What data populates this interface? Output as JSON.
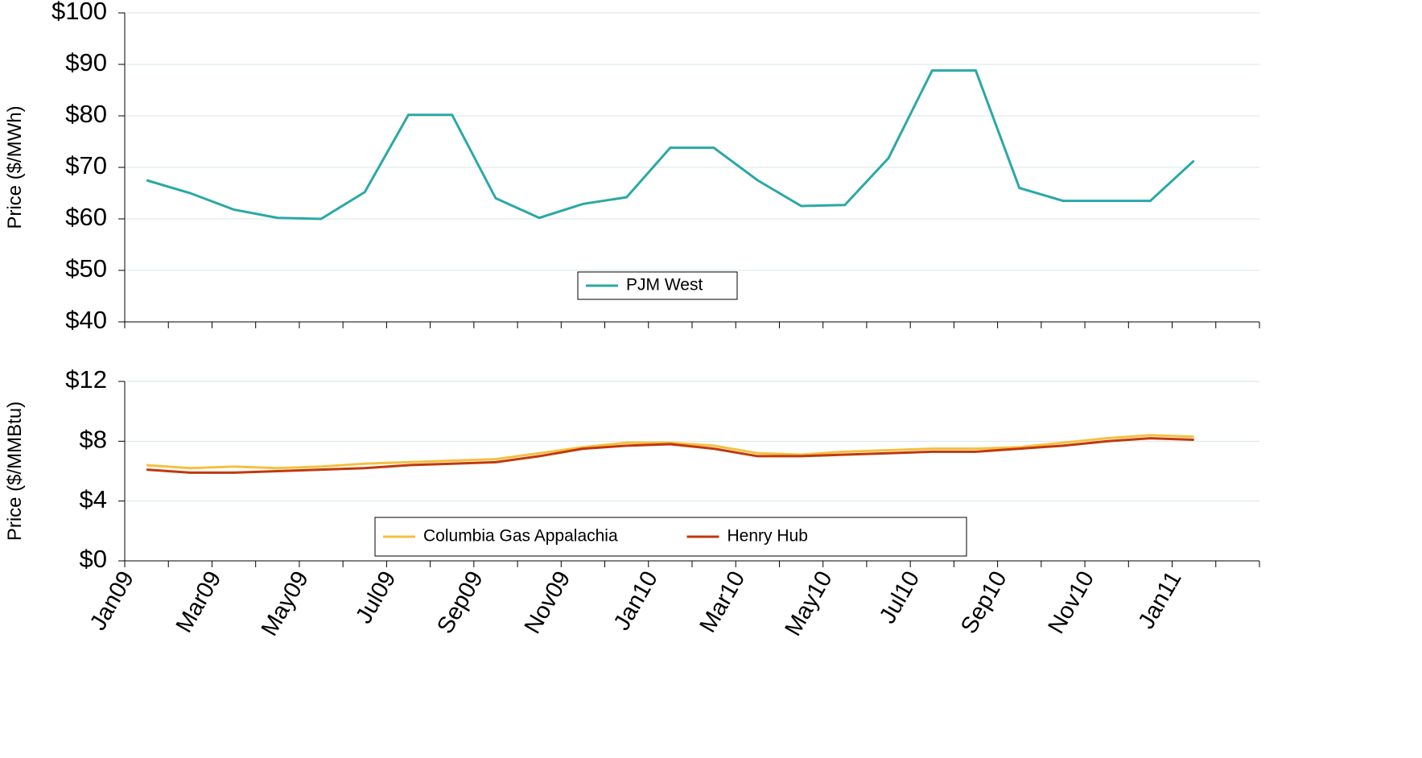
{
  "chart_data": [
    {
      "type": "line",
      "y_label": "Price ($/MWh)",
      "ylim": [
        40,
        100
      ],
      "yticks": [
        {
          "value": 40,
          "label": "$40"
        },
        {
          "value": 50,
          "label": "$50"
        },
        {
          "value": 60,
          "label": "$60"
        },
        {
          "value": 70,
          "label": "$70"
        },
        {
          "value": 80,
          "label": "$80"
        },
        {
          "value": 90,
          "label": "$90"
        },
        {
          "value": 100,
          "label": "$100"
        }
      ],
      "grid": true,
      "series": [
        {
          "name": "PJM West",
          "color": "#2aa8a6",
          "values": [
            67.5,
            65,
            61.8,
            60.2,
            60,
            65.2,
            80.2,
            80.2,
            64,
            60.2,
            62.9,
            64.2,
            73.8,
            73.8,
            67.5,
            62.5,
            62.7,
            71.8,
            88.8,
            88.8,
            66,
            63.5,
            63.5,
            63.5,
            71.3
          ]
        }
      ]
    },
    {
      "type": "line",
      "y_label": "Price ($/MMBtu)",
      "categories": [
        "Jan09",
        null,
        "Mar09",
        null,
        "May09",
        null,
        "Jul09",
        null,
        "Sep09",
        null,
        "Nov09",
        null,
        "Jan10",
        null,
        "Mar10",
        null,
        "May10",
        null,
        "Jul10",
        null,
        "Sep10",
        null,
        "Nov10",
        null,
        "Jan11"
      ],
      "ylim": [
        0,
        12
      ],
      "yticks": [
        {
          "value": 0,
          "label": "$0"
        },
        {
          "value": 4,
          "label": "$4"
        },
        {
          "value": 8,
          "label": "$8"
        },
        {
          "value": 12,
          "label": "$12"
        }
      ],
      "grid": true,
      "series": [
        {
          "name": "Columbia Gas Appalachia",
          "color": "#f5c040",
          "values": [
            6.4,
            6.2,
            6.3,
            6.2,
            6.3,
            6.5,
            6.6,
            6.7,
            6.8,
            7.2,
            7.6,
            7.9,
            7.9,
            7.7,
            7.2,
            7.1,
            7.3,
            7.4,
            7.5,
            7.5,
            7.6,
            7.9,
            8.2,
            8.4,
            8.3
          ]
        },
        {
          "name": "Henry Hub",
          "color": "#c0380c",
          "values": [
            6.1,
            5.9,
            5.9,
            6.0,
            6.1,
            6.2,
            6.4,
            6.5,
            6.6,
            7.0,
            7.5,
            7.7,
            7.8,
            7.5,
            7.0,
            7.0,
            7.1,
            7.2,
            7.3,
            7.3,
            7.5,
            7.7,
            8.0,
            8.2,
            8.1
          ]
        }
      ]
    }
  ]
}
